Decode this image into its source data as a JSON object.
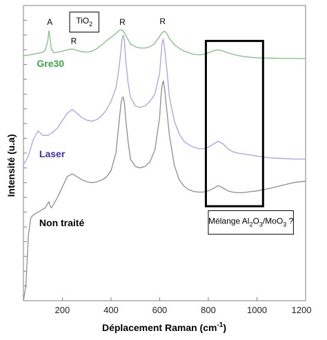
{
  "chart_data": {
    "type": "line",
    "xlabel": "Déplacement Raman (cm",
    "xlabel_sup": "-1",
    "xlabel_end": ")",
    "ylabel": "Intensité (u.a)",
    "xlim": [
      40,
      1200
    ],
    "ylim": [
      0,
      100
    ],
    "x_ticks": [
      200,
      400,
      600,
      800,
      1000,
      1200
    ],
    "y_tick_labels": false,
    "grid": false,
    "series": [
      {
        "name": "Gre30",
        "color": "#7fbf7f",
        "label_color": "#3aa64a",
        "x": [
          40,
          60,
          80,
          100,
          120,
          130,
          140,
          145,
          150,
          155,
          165,
          180,
          200,
          220,
          240,
          260,
          280,
          300,
          320,
          340,
          360,
          380,
          400,
          420,
          430,
          440,
          450,
          460,
          470,
          480,
          500,
          520,
          540,
          560,
          580,
          600,
          610,
          620,
          630,
          640,
          660,
          680,
          700,
          720,
          740,
          760,
          780,
          800,
          820,
          840,
          860,
          880,
          900,
          920,
          940,
          960,
          980,
          1000,
          1050,
          1100,
          1150,
          1200
        ],
        "y": [
          83.0,
          83.2,
          83.5,
          83.8,
          84.2,
          85.0,
          88.0,
          91.5,
          88.5,
          85.2,
          84.0,
          84.2,
          84.5,
          85.0,
          85.3,
          84.8,
          84.4,
          84.2,
          84.5,
          85.3,
          86.5,
          88.0,
          89.2,
          90.5,
          91.3,
          91.8,
          91.4,
          90.0,
          88.5,
          87.0,
          86.0,
          85.6,
          85.6,
          86.0,
          87.2,
          89.5,
          90.8,
          91.3,
          90.5,
          88.8,
          86.8,
          85.5,
          84.6,
          84.0,
          83.5,
          83.3,
          83.4,
          84.0,
          84.6,
          85.0,
          84.6,
          84.0,
          83.5,
          83.1,
          82.8,
          82.6,
          82.4,
          82.3,
          82.2,
          82.1,
          82.1,
          82.0
        ]
      },
      {
        "name": "Laser",
        "color": "#a3a3e6",
        "label_color": "#3d2fb5",
        "x": [
          40,
          60,
          80,
          100,
          120,
          140,
          160,
          180,
          200,
          220,
          240,
          260,
          280,
          300,
          320,
          340,
          360,
          380,
          400,
          420,
          430,
          440,
          445,
          450,
          455,
          460,
          470,
          480,
          500,
          520,
          540,
          560,
          580,
          600,
          605,
          610,
          615,
          620,
          630,
          640,
          660,
          680,
          700,
          720,
          740,
          760,
          780,
          800,
          820,
          840,
          860,
          880,
          900,
          920,
          940,
          960,
          980,
          1000,
          1020,
          1050,
          1100,
          1150,
          1200
        ],
        "y": [
          46.0,
          49.0,
          54.5,
          57.5,
          56.0,
          56.0,
          57.0,
          58.5,
          61.0,
          63.5,
          64.8,
          63.5,
          62.0,
          61.2,
          60.8,
          61.3,
          62.5,
          64.5,
          67.5,
          72.0,
          77.0,
          84.0,
          88.5,
          90.0,
          88.0,
          82.0,
          74.0,
          69.0,
          66.0,
          65.5,
          66.0,
          67.5,
          70.0,
          77.0,
          82.5,
          87.5,
          88.5,
          86.0,
          78.0,
          69.0,
          61.0,
          56.5,
          54.0,
          52.8,
          52.0,
          51.5,
          51.5,
          52.0,
          53.0,
          54.0,
          53.2,
          51.5,
          50.5,
          50.0,
          49.8,
          49.5,
          49.3,
          49.0,
          48.8,
          48.4,
          48.2,
          48.0,
          48.0
        ]
      },
      {
        "name": "Non traité",
        "color": "#8c8c8c",
        "label_color": "#000000",
        "x": [
          40,
          50,
          60,
          70,
          80,
          90,
          100,
          110,
          120,
          130,
          140,
          145,
          150,
          155,
          160,
          170,
          180,
          200,
          220,
          240,
          260,
          280,
          300,
          320,
          340,
          360,
          380,
          400,
          420,
          430,
          440,
          445,
          450,
          455,
          460,
          470,
          480,
          500,
          520,
          540,
          560,
          580,
          600,
          605,
          610,
          615,
          620,
          630,
          640,
          660,
          680,
          700,
          720,
          740,
          760,
          780,
          800,
          820,
          840,
          860,
          880,
          900,
          920,
          940,
          960,
          980,
          1000,
          1050,
          1100,
          1150,
          1200
        ],
        "y": [
          0.0,
          5.0,
          22.0,
          28.0,
          29.0,
          29.5,
          30.0,
          30.5,
          31.0,
          31.5,
          33.0,
          33.5,
          32.0,
          31.5,
          32.0,
          33.5,
          35.0,
          38.5,
          42.0,
          43.0,
          42.0,
          41.0,
          40.3,
          40.0,
          40.2,
          40.8,
          41.8,
          44.0,
          50.0,
          58.0,
          66.0,
          68.5,
          69.0,
          67.0,
          62.0,
          54.0,
          48.0,
          45.5,
          45.0,
          45.5,
          47.0,
          51.0,
          62.0,
          69.0,
          73.0,
          74.5,
          72.0,
          64.0,
          56.0,
          46.0,
          41.0,
          38.8,
          37.6,
          37.0,
          36.8,
          36.8,
          37.2,
          38.0,
          39.0,
          38.2,
          37.2,
          36.8,
          36.6,
          36.6,
          36.8,
          37.0,
          37.2,
          38.0,
          39.0,
          40.0,
          40.5
        ]
      }
    ],
    "peak_labels": [
      {
        "text": "A",
        "x": 148,
        "y": 93.5
      },
      {
        "text": "R",
        "x": 247,
        "y": 87.0
      },
      {
        "text": "R",
        "x": 447,
        "y": 93.5
      },
      {
        "text": "R",
        "x": 612,
        "y": 93.7
      }
    ],
    "series_label_pos": [
      {
        "series": 0,
        "x": 95,
        "y": 79.2
      },
      {
        "series": 1,
        "x": 105,
        "y": 48.6
      },
      {
        "series": 2,
        "x": 105,
        "y": 25.2
      }
    ],
    "legend_box": {
      "label": "TiO",
      "sub": "2",
      "x0": 230,
      "x1": 350,
      "y0": 91.0,
      "y1": 97.8
    },
    "highlight_box": {
      "x0": 790,
      "x1": 1025,
      "y0": 32.0,
      "y1": 88.0
    },
    "note": {
      "parts": [
        "Mélange Al",
        "2",
        "O",
        "3",
        "/MoO",
        "3",
        " ?"
      ],
      "x0": 800,
      "x1": 1150,
      "y0": 22.5,
      "y1": 30.5
    }
  }
}
